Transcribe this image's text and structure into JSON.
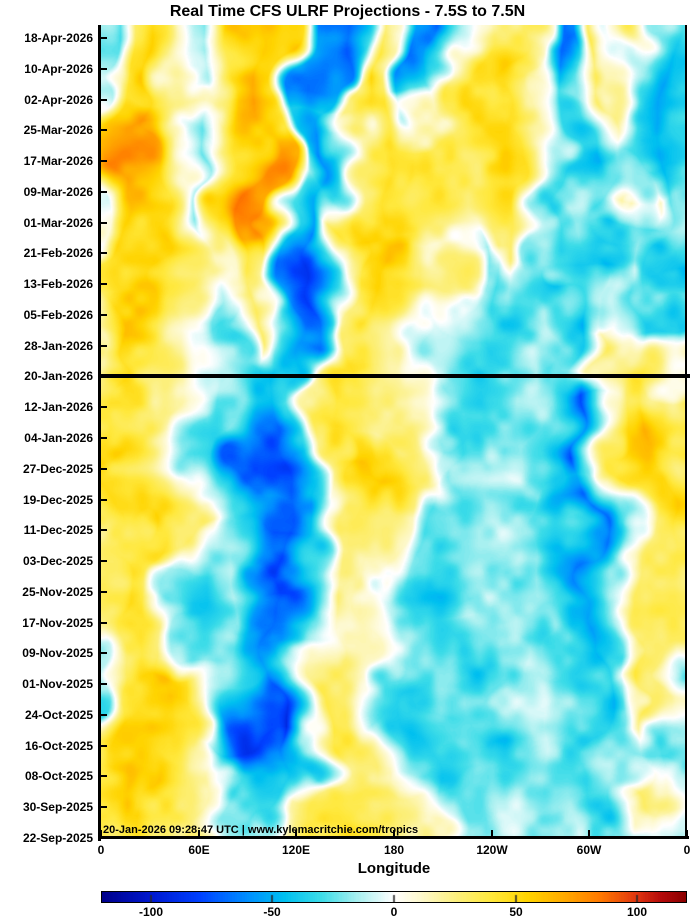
{
  "watermark": "20-Jan-2026 09:28:47 UTC | www.kylemacritchie.com/tropics",
  "chart_data": {
    "type": "heatmap",
    "title": "Real Time CFS ULRF Projections - 7.5S to 7.5N",
    "xlabel": "Longitude",
    "x_tick_labels": [
      "0",
      "60E",
      "120E",
      "180",
      "120W",
      "60W",
      "0"
    ],
    "x_lon_deg": [
      0,
      15,
      30,
      45,
      60,
      75,
      90,
      105,
      120,
      135,
      150,
      165,
      180,
      195,
      210,
      225,
      240,
      255,
      270,
      285,
      300,
      315,
      330,
      345,
      360
    ],
    "y_dates": [
      "18-Apr-2026",
      "10-Apr-2026",
      "02-Apr-2026",
      "25-Mar-2026",
      "17-Mar-2026",
      "09-Mar-2026",
      "01-Mar-2026",
      "21-Feb-2026",
      "13-Feb-2026",
      "05-Feb-2026",
      "28-Jan-2026",
      "20-Jan-2026",
      "12-Jan-2026",
      "04-Jan-2026",
      "27-Dec-2025",
      "19-Dec-2025",
      "11-Dec-2025",
      "03-Dec-2025",
      "25-Nov-2025",
      "17-Nov-2025",
      "09-Nov-2025",
      "01-Nov-2025",
      "24-Oct-2025",
      "16-Oct-2025",
      "08-Oct-2025",
      "30-Sep-2025",
      "22-Sep-2025"
    ],
    "forecast_start_date": "20-Jan-2026",
    "colorbar": {
      "range": [
        -120,
        120
      ],
      "tick_values": [
        -100,
        -50,
        0,
        50,
        100
      ],
      "tick_labels": [
        "-100",
        "-50",
        "0",
        "50",
        "100"
      ],
      "stops": [
        [
          -120,
          "#00008b"
        ],
        [
          -100,
          "#0018cf"
        ],
        [
          -80,
          "#0040ff"
        ],
        [
          -60,
          "#0090ff"
        ],
        [
          -45,
          "#00c0f0"
        ],
        [
          -30,
          "#3cdce8"
        ],
        [
          -15,
          "#a8f0f0"
        ],
        [
          0,
          "#ffffff"
        ],
        [
          12,
          "#fdf8c8"
        ],
        [
          25,
          "#fcf080"
        ],
        [
          40,
          "#ffe83c"
        ],
        [
          55,
          "#ffd400"
        ],
        [
          70,
          "#ffaa00"
        ],
        [
          85,
          "#ff7800"
        ],
        [
          100,
          "#e03510"
        ],
        [
          110,
          "#b40a0a"
        ],
        [
          120,
          "#8b0000"
        ]
      ]
    },
    "values": [
      [
        -25,
        45,
        50,
        10,
        -20,
        55,
        65,
        60,
        -55,
        -70,
        -30,
        35,
        5,
        -60,
        -55,
        0,
        30,
        35,
        5,
        -65,
        -55,
        40,
        -30,
        -40,
        -35
      ],
      [
        -20,
        50,
        60,
        20,
        -15,
        40,
        70,
        55,
        -60,
        -65,
        25,
        45,
        20,
        -65,
        -50,
        10,
        40,
        45,
        20,
        -55,
        -30,
        30,
        -20,
        -45,
        -30
      ],
      [
        -15,
        45,
        55,
        25,
        10,
        50,
        65,
        45,
        -35,
        -40,
        30,
        40,
        30,
        -45,
        -30,
        35,
        45,
        50,
        30,
        -35,
        -15,
        20,
        -25,
        -50,
        -40
      ],
      [
        10,
        60,
        70,
        30,
        -15,
        45,
        60,
        50,
        -40,
        -55,
        -20,
        30,
        45,
        40,
        30,
        40,
        50,
        45,
        20,
        -30,
        -35,
        10,
        -30,
        -45,
        -35
      ],
      [
        15,
        70,
        65,
        25,
        -20,
        40,
        70,
        60,
        -45,
        -70,
        -35,
        20,
        45,
        50,
        35,
        40,
        45,
        40,
        10,
        -25,
        -40,
        -15,
        -35,
        -60,
        -40
      ],
      [
        5,
        65,
        55,
        15,
        -25,
        35,
        80,
        70,
        -20,
        -40,
        -30,
        25,
        50,
        45,
        40,
        35,
        40,
        45,
        -15,
        -30,
        -20,
        -25,
        20,
        -30,
        -25
      ],
      [
        0,
        55,
        50,
        20,
        -15,
        30,
        85,
        75,
        -30,
        -60,
        20,
        55,
        50,
        35,
        25,
        20,
        35,
        40,
        -15,
        -35,
        -20,
        -30,
        -35,
        -30,
        -20
      ],
      [
        -10,
        45,
        55,
        30,
        10,
        25,
        75,
        65,
        -50,
        -70,
        -30,
        45,
        55,
        45,
        15,
        -20,
        25,
        30,
        -25,
        -40,
        -30,
        -40,
        -25,
        -45,
        -35
      ],
      [
        -20,
        40,
        50,
        35,
        15,
        20,
        40,
        30,
        -60,
        -80,
        -45,
        30,
        50,
        40,
        20,
        -25,
        -20,
        15,
        -30,
        -35,
        -45,
        -30,
        -15,
        -40,
        -45
      ],
      [
        10,
        50,
        45,
        25,
        -10,
        15,
        30,
        -20,
        -65,
        -75,
        -40,
        20,
        45,
        35,
        25,
        -15,
        -30,
        -20,
        -15,
        -35,
        25,
        -10,
        -35,
        -30,
        -20
      ],
      [
        20,
        55,
        40,
        15,
        -20,
        -25,
        20,
        -35,
        -55,
        -60,
        -25,
        30,
        40,
        30,
        -10,
        -25,
        -35,
        -30,
        -20,
        -30,
        35,
        10,
        -30,
        -35,
        -25
      ],
      [
        15,
        45,
        35,
        20,
        -15,
        -30,
        -40,
        -50,
        -30,
        20,
        45,
        50,
        40,
        20,
        -15,
        -25,
        -20,
        -15,
        -30,
        -20,
        20,
        25,
        35,
        40,
        30
      ],
      [
        25,
        40,
        30,
        25,
        -20,
        -35,
        -55,
        -65,
        -40,
        30,
        50,
        45,
        30,
        10,
        -20,
        -30,
        -15,
        -20,
        -25,
        -40,
        -65,
        -25,
        40,
        55,
        35
      ],
      [
        30,
        45,
        40,
        15,
        -25,
        -30,
        -60,
        -75,
        -50,
        20,
        40,
        35,
        25,
        -15,
        -30,
        -20,
        -25,
        -15,
        -20,
        -35,
        -70,
        -20,
        45,
        60,
        40
      ],
      [
        35,
        60,
        45,
        20,
        -15,
        -25,
        -70,
        -80,
        -35,
        30,
        60,
        65,
        35,
        10,
        -20,
        -25,
        -15,
        -10,
        -25,
        -30,
        -45,
        -15,
        50,
        55,
        45
      ],
      [
        25,
        50,
        40,
        25,
        10,
        -20,
        -55,
        -70,
        -55,
        15,
        35,
        40,
        30,
        -20,
        -25,
        -15,
        -20,
        -25,
        -15,
        -40,
        -65,
        -25,
        40,
        50,
        35
      ],
      [
        30,
        45,
        50,
        30,
        15,
        -25,
        -65,
        -85,
        -60,
        -20,
        25,
        30,
        20,
        -25,
        -30,
        -25,
        -15,
        -20,
        -25,
        -35,
        -70,
        -30,
        35,
        45,
        40
      ],
      [
        20,
        40,
        35,
        -15,
        -25,
        -20,
        -50,
        -70,
        -45,
        -25,
        20,
        25,
        15,
        -20,
        -35,
        -30,
        -25,
        -15,
        -20,
        -45,
        -60,
        -20,
        30,
        40,
        35
      ],
      [
        25,
        45,
        30,
        -20,
        -30,
        -15,
        -60,
        -80,
        -50,
        -20,
        25,
        20,
        -10,
        -25,
        -30,
        -35,
        -20,
        -25,
        -15,
        -35,
        -55,
        -25,
        25,
        35,
        30
      ],
      [
        15,
        35,
        40,
        20,
        -25,
        -35,
        -55,
        -65,
        -40,
        -15,
        20,
        15,
        -15,
        -30,
        -25,
        -20,
        -30,
        -20,
        -25,
        -40,
        -65,
        -30,
        20,
        30,
        25
      ],
      [
        -15,
        25,
        35,
        30,
        -20,
        -30,
        -50,
        -65,
        -45,
        -15,
        20,
        15,
        -20,
        -25,
        -35,
        -30,
        -20,
        -25,
        -15,
        -30,
        -55,
        -35,
        30,
        25,
        20
      ],
      [
        -20,
        40,
        50,
        55,
        40,
        -10,
        -40,
        -60,
        -35,
        15,
        20,
        10,
        -25,
        -35,
        -30,
        -25,
        -30,
        -15,
        -25,
        -35,
        -45,
        -20,
        35,
        30,
        -15
      ],
      [
        25,
        55,
        50,
        55,
        45,
        15,
        -60,
        -80,
        -25,
        35,
        30,
        -15,
        -30,
        -40,
        -35,
        -30,
        -25,
        -20,
        -15,
        -40,
        -50,
        -30,
        25,
        20,
        -20
      ],
      [
        30,
        50,
        45,
        40,
        30,
        -15,
        -70,
        -100,
        -40,
        30,
        35,
        20,
        -20,
        -30,
        -25,
        -35,
        -30,
        -25,
        -20,
        -35,
        -40,
        -25,
        20,
        -15,
        -25
      ],
      [
        40,
        55,
        40,
        30,
        20,
        15,
        -35,
        -50,
        -30,
        25,
        35,
        30,
        20,
        -25,
        -30,
        -25,
        -20,
        -15,
        -25,
        -30,
        -35,
        -20,
        -15,
        -30,
        -20
      ],
      [
        35,
        45,
        50,
        35,
        25,
        20,
        -20,
        -30,
        25,
        40,
        35,
        30,
        25,
        15,
        -20,
        -25,
        -15,
        -20,
        -15,
        -25,
        -40,
        -30,
        25,
        20,
        -10
      ],
      [
        30,
        40,
        45,
        40,
        30,
        25,
        15,
        -15,
        30,
        45,
        40,
        35,
        30,
        20,
        -15,
        -20,
        -25,
        -15,
        -20,
        -15,
        -30,
        -35,
        -25,
        -20,
        -10
      ]
    ]
  }
}
